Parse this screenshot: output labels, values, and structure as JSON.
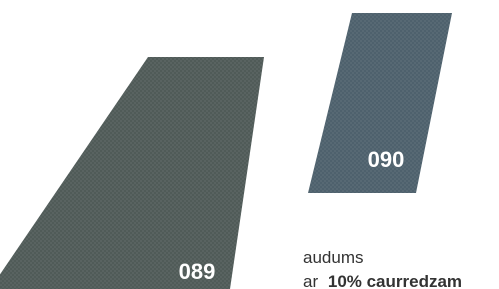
{
  "swatches": [
    {
      "code": "089"
    },
    {
      "code": "090"
    }
  ],
  "caption": {
    "line1": "audums",
    "line2_prefix": "ar",
    "line2_bold": "10% caurredzam"
  }
}
